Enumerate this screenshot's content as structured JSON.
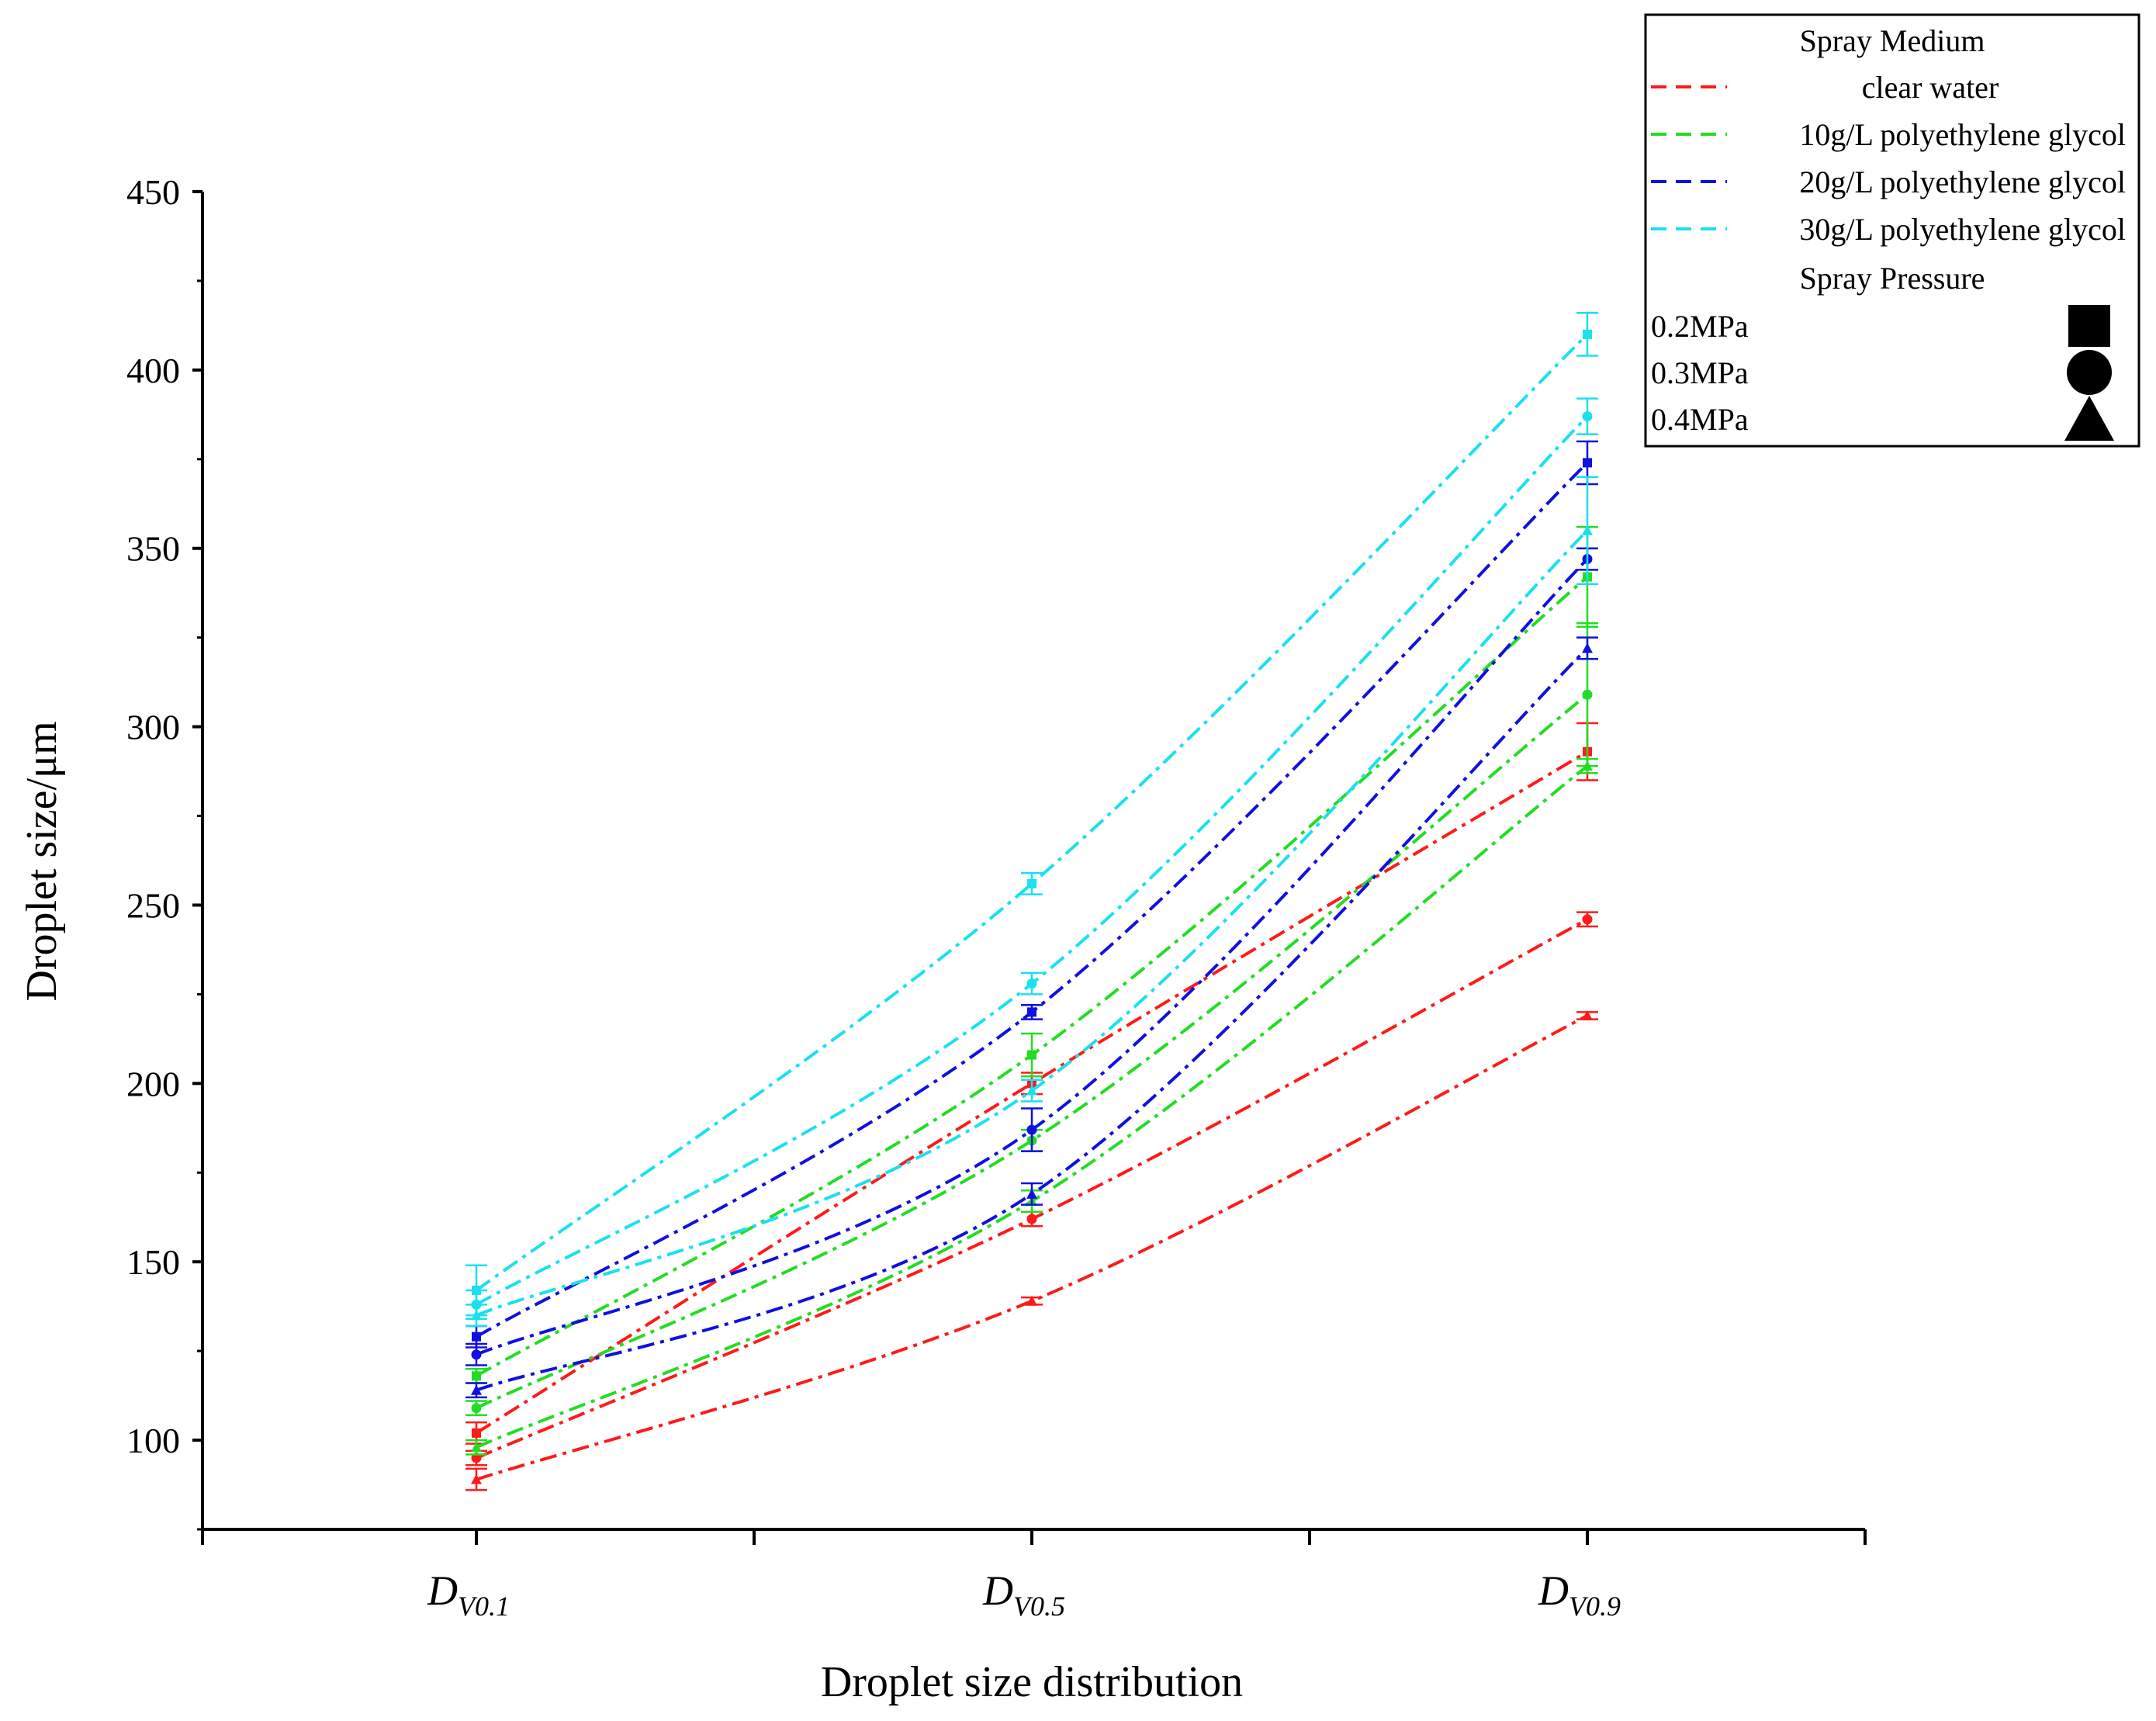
{
  "chart_data": {
    "type": "line",
    "title": "",
    "xlabel": "Droplet size distribution",
    "ylabel": "Droplet size/μm",
    "categories": [
      {
        "main": "D",
        "sub": "V0.1"
      },
      {
        "main": "D",
        "sub": "V0.5"
      },
      {
        "main": "D",
        "sub": "V0.9"
      }
    ],
    "ylim": [
      75,
      450
    ],
    "yticks": [
      100,
      150,
      200,
      250,
      300,
      350,
      400,
      450
    ],
    "legend": {
      "medium_title": "Spray Medium",
      "pressure_title": "Spray Pressure",
      "media": [
        {
          "label": "clear water",
          "color": "#ff1a1a"
        },
        {
          "label": "10g/L polyethylene glycol",
          "color": "#22dd22"
        },
        {
          "label": "20g/L polyethylene glycol",
          "color": "#1010e0"
        },
        {
          "label": "30g/L polyethylene glycol",
          "color": "#1ae0f0"
        }
      ],
      "pressures": [
        {
          "label": "0.2MPa",
          "marker": "square"
        },
        {
          "label": "0.3MPa",
          "marker": "circle"
        },
        {
          "label": "0.4MPa",
          "marker": "triangle"
        }
      ]
    },
    "series": [
      {
        "medium": "clear water",
        "pressure": "0.2MPa",
        "color": "#ff1a1a",
        "values": [
          102,
          200,
          293
        ],
        "errors": [
          3,
          3,
          8
        ]
      },
      {
        "medium": "clear water",
        "pressure": "0.3MPa",
        "color": "#ff1a1a",
        "values": [
          95,
          162,
          246
        ],
        "errors": [
          2,
          2,
          2
        ]
      },
      {
        "medium": "clear water",
        "pressure": "0.4MPa",
        "color": "#ff1a1a",
        "values": [
          89,
          139,
          219
        ],
        "errors": [
          3,
          1,
          1
        ]
      },
      {
        "medium": "10g/L polyethylene glycol",
        "pressure": "0.2MPa",
        "color": "#22dd22",
        "values": [
          118,
          208,
          342
        ],
        "errors": [
          2,
          6,
          14
        ]
      },
      {
        "medium": "10g/L polyethylene glycol",
        "pressure": "0.3MPa",
        "color": "#22dd22",
        "values": [
          109,
          184,
          309
        ],
        "errors": [
          2,
          3,
          20
        ]
      },
      {
        "medium": "10g/L polyethylene glycol",
        "pressure": "0.4MPa",
        "color": "#22dd22",
        "values": [
          98,
          167,
          289
        ],
        "errors": [
          2,
          3,
          2
        ]
      },
      {
        "medium": "20g/L polyethylene glycol",
        "pressure": "0.2MPa",
        "color": "#1010e0",
        "values": [
          129,
          220,
          374
        ],
        "errors": [
          3,
          2,
          6
        ]
      },
      {
        "medium": "20g/L polyethylene glycol",
        "pressure": "0.3MPa",
        "color": "#1010e0",
        "values": [
          124,
          187,
          347
        ],
        "errors": [
          3,
          6,
          3
        ]
      },
      {
        "medium": "20g/L polyethylene glycol",
        "pressure": "0.4MPa",
        "color": "#1010e0",
        "values": [
          114,
          169,
          322
        ],
        "errors": [
          2,
          3,
          3
        ]
      },
      {
        "medium": "30g/L polyethylene glycol",
        "pressure": "0.2MPa",
        "color": "#1ae0f0",
        "values": [
          142,
          256,
          410
        ],
        "errors": [
          7,
          3,
          6
        ]
      },
      {
        "medium": "30g/L polyethylene glycol",
        "pressure": "0.3MPa",
        "color": "#1ae0f0",
        "values": [
          138,
          228,
          387
        ],
        "errors": [
          4,
          3,
          5
        ]
      },
      {
        "medium": "30g/L polyethylene glycol",
        "pressure": "0.4MPa",
        "color": "#1ae0f0",
        "values": [
          135,
          198,
          355
        ],
        "errors": [
          3,
          3,
          15
        ]
      }
    ]
  }
}
